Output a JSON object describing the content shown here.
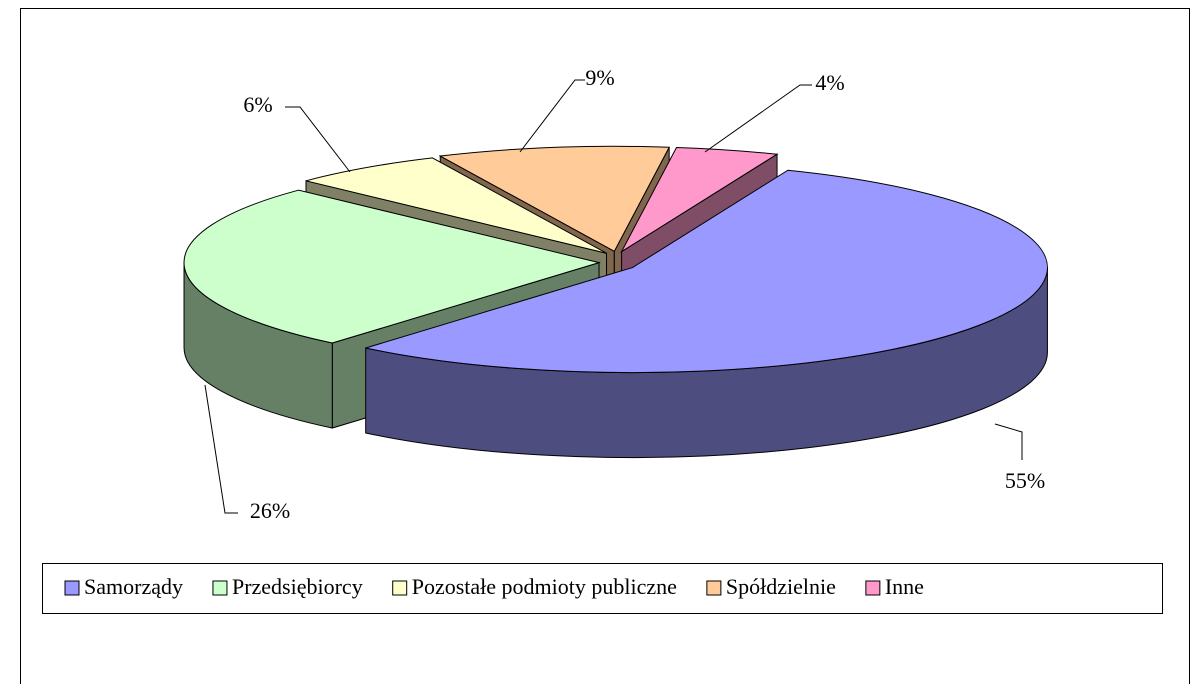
{
  "chart_data": {
    "type": "pie3d",
    "categories": [
      "Samorządy",
      "Przedsiębiorcy",
      "Pozostałe podmioty publiczne",
      "Spółdzielnie",
      "Inne"
    ],
    "values": [
      55,
      26,
      6,
      9,
      4
    ],
    "value_labels": [
      "55%",
      "26%",
      "6%",
      "9%",
      "4%"
    ],
    "colors": [
      "#9999ff",
      "#ccffcc",
      "#ffffcc",
      "#ffcc99",
      "#ff99cc"
    ],
    "legend": "bottom"
  }
}
